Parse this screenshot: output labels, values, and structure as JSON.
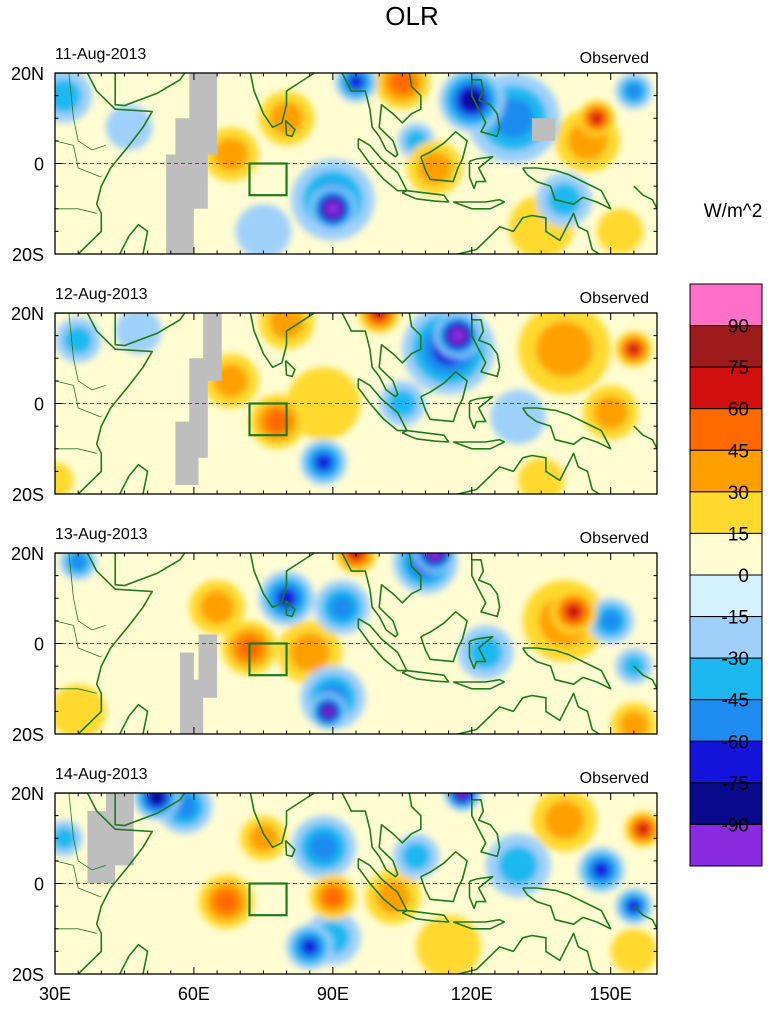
{
  "chart_data": {
    "type": "heatmap",
    "title": "OLR",
    "colorbar": {
      "unit_label": "W/m^2",
      "levels": [
        90,
        75,
        60,
        45,
        30,
        15,
        0,
        -15,
        -30,
        -45,
        -60,
        -75,
        -90
      ],
      "colors": [
        "#ff6ec7",
        "#9e1b1b",
        "#d10f0f",
        "#ff6a00",
        "#ffa000",
        "#ffd92e",
        "#fffcd2",
        "#d4f1ff",
        "#9fd0fa",
        "#1eb8f0",
        "#1e8cf0",
        "#1414dc",
        "#0a0a8c",
        "#8a2be2"
      ],
      "orientation": "vertical",
      "placement": "right"
    },
    "x_axis": {
      "range": [
        30,
        160
      ],
      "ticks": [
        30,
        60,
        90,
        120,
        150
      ],
      "tick_labels": [
        "30E",
        "60E",
        "90E",
        "120E",
        "150E"
      ]
    },
    "y_axis": {
      "range": [
        -20,
        20
      ],
      "ticks": [
        20,
        0,
        -20
      ],
      "tick_labels": [
        "20N",
        "0",
        "20S"
      ]
    },
    "box_region": {
      "lon": [
        72,
        80
      ],
      "lat": [
        -7,
        0
      ]
    },
    "panels": [
      {
        "date": "11-Aug-2013",
        "label": "Observed",
        "grey_mask": [
          [
            54,
            60,
            -20,
            2
          ],
          [
            56,
            63,
            -10,
            10
          ],
          [
            59,
            65,
            2,
            20
          ],
          [
            133,
            138,
            5,
            10
          ]
        ],
        "features": [
          {
            "lon": 90,
            "lat": -10,
            "value": -105,
            "r": 10
          },
          {
            "lon": 90,
            "lat": -8,
            "value": -55,
            "r": 18
          },
          {
            "lon": 120,
            "lat": 14,
            "value": -80,
            "r": 14
          },
          {
            "lon": 129,
            "lat": 10,
            "value": -55,
            "r": 20
          },
          {
            "lon": 95,
            "lat": 18,
            "value": -60,
            "r": 9
          },
          {
            "lon": 108,
            "lat": 5,
            "value": -40,
            "r": 8
          },
          {
            "lon": 112,
            "lat": -1,
            "value": 40,
            "r": 12
          },
          {
            "lon": 105,
            "lat": 18,
            "value": 50,
            "r": 12
          },
          {
            "lon": 80,
            "lat": 10,
            "value": 35,
            "r": 12
          },
          {
            "lon": 68,
            "lat": 2,
            "value": 35,
            "r": 12
          },
          {
            "lon": 147,
            "lat": 10,
            "value": 60,
            "r": 8
          },
          {
            "lon": 145,
            "lat": 5,
            "value": 30,
            "r": 14
          },
          {
            "lon": 140,
            "lat": -8,
            "value": -40,
            "r": 12
          },
          {
            "lon": 155,
            "lat": 16,
            "value": -45,
            "r": 8
          },
          {
            "lon": 32,
            "lat": 15,
            "value": -30,
            "r": 12
          },
          {
            "lon": 46,
            "lat": 8,
            "value": -25,
            "r": 10
          },
          {
            "lon": 135,
            "lat": -14,
            "value": 15,
            "r": 14
          },
          {
            "lon": 152,
            "lat": -15,
            "value": 20,
            "r": 10
          },
          {
            "lon": 75,
            "lat": -15,
            "value": -15,
            "r": 12
          }
        ]
      },
      {
        "date": "12-Aug-2013",
        "label": "Observed",
        "grey_mask": [
          [
            56,
            61,
            -18,
            -4
          ],
          [
            59,
            63,
            -12,
            10
          ],
          [
            62,
            66,
            5,
            20
          ]
        ],
        "features": [
          {
            "lon": 117,
            "lat": 15,
            "value": -105,
            "r": 10
          },
          {
            "lon": 115,
            "lat": 12,
            "value": -70,
            "r": 20
          },
          {
            "lon": 88,
            "lat": -13,
            "value": -60,
            "r": 10
          },
          {
            "lon": 100,
            "lat": 20,
            "value": 70,
            "r": 9
          },
          {
            "lon": 80,
            "lat": 18,
            "value": 30,
            "r": 12
          },
          {
            "lon": 78,
            "lat": -4,
            "value": 45,
            "r": 12
          },
          {
            "lon": 88,
            "lat": 0,
            "value": 25,
            "r": 16
          },
          {
            "lon": 68,
            "lat": 5,
            "value": 35,
            "r": 12
          },
          {
            "lon": 140,
            "lat": 12,
            "value": 35,
            "r": 20
          },
          {
            "lon": 155,
            "lat": 12,
            "value": 60,
            "r": 8
          },
          {
            "lon": 150,
            "lat": -2,
            "value": 30,
            "r": 12
          },
          {
            "lon": 130,
            "lat": -3,
            "value": -25,
            "r": 12
          },
          {
            "lon": 105,
            "lat": 0,
            "value": -30,
            "r": 10
          },
          {
            "lon": 35,
            "lat": 14,
            "value": -40,
            "r": 10
          },
          {
            "lon": 48,
            "lat": 16,
            "value": -20,
            "r": 10
          },
          {
            "lon": 30,
            "lat": -17,
            "value": 25,
            "r": 8
          },
          {
            "lon": 135,
            "lat": -17,
            "value": 20,
            "r": 10
          }
        ]
      },
      {
        "date": "13-Aug-2013",
        "label": "Observed",
        "grey_mask": [
          [
            57,
            60,
            -20,
            -2
          ],
          [
            59,
            62,
            -20,
            -8
          ],
          [
            61,
            65,
            -12,
            2
          ]
        ],
        "features": [
          {
            "lon": 112,
            "lat": 20,
            "value": -105,
            "r": 9
          },
          {
            "lon": 110,
            "lat": 18,
            "value": -60,
            "r": 14
          },
          {
            "lon": 89,
            "lat": -15,
            "value": -95,
            "r": 8
          },
          {
            "lon": 90,
            "lat": -12,
            "value": -45,
            "r": 14
          },
          {
            "lon": 80,
            "lat": 10,
            "value": -60,
            "r": 12
          },
          {
            "lon": 92,
            "lat": 8,
            "value": -50,
            "r": 12
          },
          {
            "lon": 142,
            "lat": 7,
            "value": 65,
            "r": 10
          },
          {
            "lon": 140,
            "lat": 5,
            "value": 35,
            "r": 18
          },
          {
            "lon": 72,
            "lat": -1,
            "value": 45,
            "r": 12
          },
          {
            "lon": 85,
            "lat": -2,
            "value": 30,
            "r": 14
          },
          {
            "lon": 65,
            "lat": 8,
            "value": 30,
            "r": 12
          },
          {
            "lon": 95,
            "lat": 20,
            "value": 70,
            "r": 9
          },
          {
            "lon": 150,
            "lat": 5,
            "value": -55,
            "r": 10
          },
          {
            "lon": 155,
            "lat": -5,
            "value": -40,
            "r": 8
          },
          {
            "lon": 123,
            "lat": -2,
            "value": -30,
            "r": 12
          },
          {
            "lon": 35,
            "lat": 18,
            "value": -50,
            "r": 8
          },
          {
            "lon": 35,
            "lat": -15,
            "value": 25,
            "r": 12
          },
          {
            "lon": 155,
            "lat": -18,
            "value": 30,
            "r": 10
          }
        ]
      },
      {
        "date": "14-Aug-2013",
        "label": "Observed",
        "grey_mask": [
          [
            37,
            43,
            0,
            16
          ],
          [
            41,
            47,
            4,
            20
          ]
        ],
        "features": [
          {
            "lon": 52,
            "lat": 19,
            "value": -85,
            "r": 10
          },
          {
            "lon": 58,
            "lat": 17,
            "value": -55,
            "r": 12
          },
          {
            "lon": 85,
            "lat": -14,
            "value": -70,
            "r": 10
          },
          {
            "lon": 90,
            "lat": -12,
            "value": -40,
            "r": 12
          },
          {
            "lon": 88,
            "lat": 8,
            "value": -45,
            "r": 14
          },
          {
            "lon": 67,
            "lat": -4,
            "value": 50,
            "r": 12
          },
          {
            "lon": 90,
            "lat": -3,
            "value": 55,
            "r": 10
          },
          {
            "lon": 103,
            "lat": -3,
            "value": 35,
            "r": 12
          },
          {
            "lon": 140,
            "lat": 14,
            "value": 40,
            "r": 14
          },
          {
            "lon": 157,
            "lat": 12,
            "value": 60,
            "r": 8
          },
          {
            "lon": 148,
            "lat": 3,
            "value": -65,
            "r": 10
          },
          {
            "lon": 155,
            "lat": -5,
            "value": -70,
            "r": 8
          },
          {
            "lon": 118,
            "lat": 20,
            "value": -95,
            "r": 8
          },
          {
            "lon": 130,
            "lat": 4,
            "value": -40,
            "r": 14
          },
          {
            "lon": 108,
            "lat": 6,
            "value": -35,
            "r": 10
          },
          {
            "lon": 75,
            "lat": 10,
            "value": 35,
            "r": 10
          },
          {
            "lon": 32,
            "lat": 10,
            "value": -40,
            "r": 8
          },
          {
            "lon": 115,
            "lat": -14,
            "value": 20,
            "r": 14
          },
          {
            "lon": 155,
            "lat": -15,
            "value": 25,
            "r": 10
          }
        ]
      }
    ]
  }
}
